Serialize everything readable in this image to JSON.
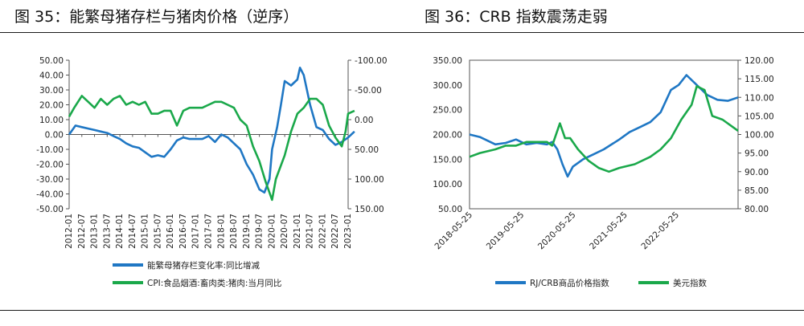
{
  "colors": {
    "blue": "#1f77c4",
    "green": "#1aa84a",
    "axis": "#555555"
  },
  "chart_data": [
    {
      "type": "line",
      "title": "图 35：能繁母猪存栏与猪肉价格（逆序）",
      "x_ticks": [
        "2012-01",
        "2012-07",
        "2013-01",
        "2013-07",
        "2014-01",
        "2014-07",
        "2015-01",
        "2015-07",
        "2016-01",
        "2016-07",
        "2017-01",
        "2017-07",
        "2018-01",
        "2018-07",
        "2019-01",
        "2019-07",
        "2020-01",
        "2020-07",
        "2021-01",
        "2021-07",
        "2022-01",
        "2022-07",
        "2023-01"
      ],
      "y_left": {
        "ticks": [
          "50.00",
          "40.00",
          "30.00",
          "20.00",
          "10.00",
          "0.00",
          "-10.00",
          "-20.00",
          "-30.00",
          "-40.00",
          "-50.00"
        ],
        "ylim": [
          -50,
          50
        ]
      },
      "y_right": {
        "ticks": [
          "-100.00",
          "-50.00",
          "0.00",
          "50.00",
          "100.00",
          "150.00"
        ],
        "ylim": [
          -100,
          150
        ],
        "inverted": true
      },
      "series": [
        {
          "name": "能繁母猪存栏变化率:同比增减",
          "axis": "left",
          "x": [
            2012.0,
            2012.25,
            2012.5,
            2012.75,
            2013.0,
            2013.25,
            2013.5,
            2013.75,
            2014.0,
            2014.25,
            2014.5,
            2014.75,
            2015.0,
            2015.25,
            2015.5,
            2015.75,
            2016.0,
            2016.25,
            2016.5,
            2016.75,
            2017.0,
            2017.25,
            2017.5,
            2017.75,
            2018.0,
            2018.25,
            2018.5,
            2018.75,
            2019.0,
            2019.25,
            2019.5,
            2019.7,
            2019.9,
            2020.0,
            2020.2,
            2020.35,
            2020.5,
            2020.75,
            2021.0,
            2021.1,
            2021.25,
            2021.5,
            2021.75,
            2022.0,
            2022.25,
            2022.5,
            2022.75,
            2023.0,
            2023.25
          ],
          "values": [
            0,
            6,
            5,
            4,
            3,
            2,
            1,
            -1,
            -3,
            -6,
            -8,
            -9,
            -12,
            -15,
            -14,
            -15,
            -10,
            -4,
            -2,
            -3,
            -3,
            -3,
            -1,
            -5,
            0,
            -2,
            -6,
            -10,
            -20,
            -27,
            -37,
            -39,
            -30,
            -10,
            5,
            20,
            36,
            33,
            37,
            45,
            40,
            20,
            5,
            3,
            -3,
            -7,
            -5,
            -2,
            2
          ]
        },
        {
          "name": "CPI:食品烟酒:畜肉类:猪肉:当月同比",
          "axis": "right",
          "x": [
            2012.0,
            2012.2,
            2012.5,
            2012.75,
            2013.0,
            2013.25,
            2013.5,
            2013.75,
            2014.0,
            2014.25,
            2014.5,
            2014.75,
            2015.0,
            2015.25,
            2015.5,
            2015.75,
            2016.0,
            2016.25,
            2016.5,
            2016.75,
            2017.0,
            2017.25,
            2017.5,
            2017.75,
            2018.0,
            2018.25,
            2018.5,
            2018.75,
            2019.0,
            2019.25,
            2019.5,
            2019.75,
            2020.0,
            2020.15,
            2020.5,
            2020.75,
            2021.0,
            2021.25,
            2021.5,
            2021.75,
            2022.0,
            2022.25,
            2022.5,
            2022.75,
            2022.9,
            2023.0,
            2023.25
          ],
          "values": [
            -5,
            -20,
            -40,
            -30,
            -20,
            -35,
            -25,
            -35,
            -40,
            -25,
            -30,
            -25,
            -30,
            -10,
            -10,
            -15,
            -15,
            10,
            -15,
            -20,
            -20,
            -20,
            -25,
            -30,
            -30,
            -25,
            -20,
            0,
            10,
            45,
            70,
            105,
            135,
            100,
            60,
            20,
            -10,
            -20,
            -35,
            -35,
            -25,
            10,
            30,
            45,
            20,
            -10,
            -15
          ]
        }
      ],
      "legend": [
        "能繁母猪存栏变化率:同比增减",
        "CPI:食品烟酒:畜肉类:猪肉:当月同比"
      ],
      "legend_position": "bottom"
    },
    {
      "type": "line",
      "title": "图 36：CRB 指数震荡走弱",
      "x_ticks": [
        "2018-05-25",
        "2019-05-25",
        "2020-05-25",
        "2021-05-25",
        "2022-05-25"
      ],
      "y_left": {
        "ticks": [
          "350.00",
          "300.00",
          "250.00",
          "200.00",
          "150.00",
          "100.00",
          "50.00"
        ],
        "ylim": [
          50,
          350
        ]
      },
      "y_right": {
        "ticks": [
          "120.00",
          "115.00",
          "110.00",
          "105.00",
          "100.00",
          "95.00",
          "90.00",
          "85.00",
          "80.00"
        ],
        "ylim": [
          80,
          120
        ]
      },
      "series": [
        {
          "name": "RJ/CRB商品价格指数",
          "axis": "left",
          "x": [
            2018.4,
            2018.6,
            2018.9,
            2019.1,
            2019.3,
            2019.5,
            2019.7,
            2019.9,
            2020.0,
            2020.1,
            2020.2,
            2020.3,
            2020.4,
            2020.6,
            2020.8,
            2021.0,
            2021.3,
            2021.5,
            2021.7,
            2021.9,
            2022.1,
            2022.3,
            2022.45,
            2022.6,
            2022.8,
            2023.0,
            2023.2,
            2023.4,
            2023.6
          ],
          "values": [
            200,
            195,
            180,
            183,
            190,
            180,
            183,
            180,
            185,
            170,
            140,
            115,
            135,
            150,
            160,
            170,
            190,
            205,
            215,
            225,
            245,
            290,
            300,
            320,
            300,
            280,
            270,
            268,
            275
          ]
        },
        {
          "name": "美元指数",
          "axis": "right",
          "x": [
            2018.4,
            2018.6,
            2018.9,
            2019.1,
            2019.3,
            2019.5,
            2019.7,
            2019.9,
            2020.0,
            2020.15,
            2020.25,
            2020.35,
            2020.5,
            2020.7,
            2020.9,
            2021.1,
            2021.3,
            2021.6,
            2021.9,
            2022.1,
            2022.3,
            2022.5,
            2022.7,
            2022.8,
            2022.95,
            2023.1,
            2023.3,
            2023.5,
            2023.6
          ],
          "values": [
            94,
            95,
            96,
            97,
            97,
            98,
            98,
            98,
            97,
            103,
            99,
            99,
            96,
            93,
            91,
            90,
            91,
            92,
            94,
            96,
            99,
            104,
            108,
            113,
            112,
            105,
            104,
            102,
            101
          ]
        }
      ],
      "legend": [
        "RJ/CRB商品价格指数",
        "美元指数"
      ],
      "legend_position": "bottom"
    }
  ]
}
